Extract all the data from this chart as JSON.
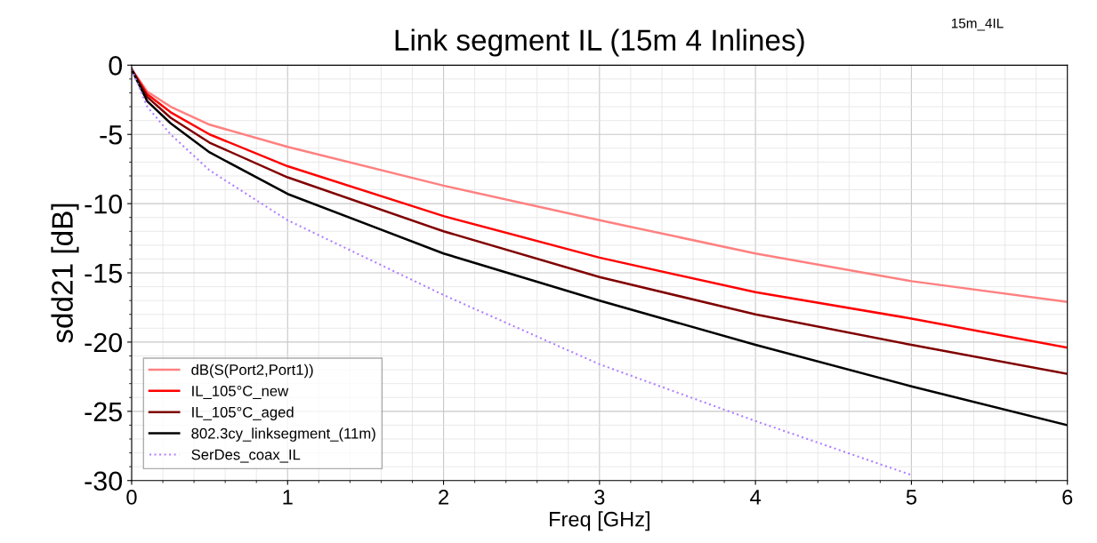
{
  "chart_data": {
    "type": "line",
    "title": "Link segment IL (15m 4 Inlines)",
    "xlabel": "Freq [GHz]",
    "ylabel": "sdd21 [dB]",
    "annotations": [
      "15m_4IL"
    ],
    "xlim": [
      0,
      6
    ],
    "xticks": [
      0,
      1,
      2,
      3,
      4,
      5,
      6
    ],
    "ylim": [
      -30,
      0
    ],
    "yticks": [
      -30,
      -25,
      -20,
      -15,
      -10,
      -5,
      0
    ],
    "grid": true,
    "legend": "bottom left",
    "line_style": "solid",
    "marker": "none",
    "series": [
      {
        "name": "dB(S(Port2,Port1))",
        "color": "#ff8080",
        "x": [
          0,
          0.1,
          0.25,
          0.5,
          1,
          2,
          3,
          4,
          5,
          6
        ],
        "values": [
          -0.3,
          -1.9,
          -3.0,
          -4.3,
          -5.9,
          -8.7,
          -11.2,
          -13.6,
          -15.6,
          -17.1
        ]
      },
      {
        "name": "IL_105°C_new",
        "color": "#ff0000",
        "x": [
          0,
          0.1,
          0.25,
          0.5,
          1,
          2,
          3,
          4,
          5,
          6
        ],
        "values": [
          -0.3,
          -2.1,
          -3.4,
          -5.0,
          -7.3,
          -10.9,
          -13.9,
          -16.4,
          -18.3,
          -20.4
        ]
      },
      {
        "name": "IL_105°C_aged",
        "color": "#800000",
        "x": [
          0,
          0.1,
          0.25,
          0.5,
          1,
          2,
          3,
          4,
          5,
          6
        ],
        "values": [
          -0.3,
          -2.3,
          -3.8,
          -5.6,
          -8.1,
          -12.0,
          -15.3,
          -18.0,
          -20.2,
          -22.3
        ]
      },
      {
        "name": "802.3cy_linksegment_(11m)",
        "color": "#000000",
        "x": [
          0,
          0.1,
          0.25,
          0.5,
          1,
          2,
          3,
          4,
          5,
          6
        ],
        "values": [
          -0.3,
          -2.6,
          -4.2,
          -6.3,
          -9.3,
          -13.6,
          -17.0,
          -20.2,
          -23.2,
          -26.0
        ]
      },
      {
        "name": "SerDes_coax_IL",
        "color": "#b080ff",
        "line_style": "dotted",
        "x": [
          0,
          0.1,
          0.25,
          0.5,
          1,
          2,
          3,
          4,
          5
        ],
        "values": [
          -0.3,
          -3.0,
          -5.0,
          -7.6,
          -11.2,
          -16.6,
          -21.6,
          -25.7,
          -29.6
        ]
      }
    ]
  }
}
